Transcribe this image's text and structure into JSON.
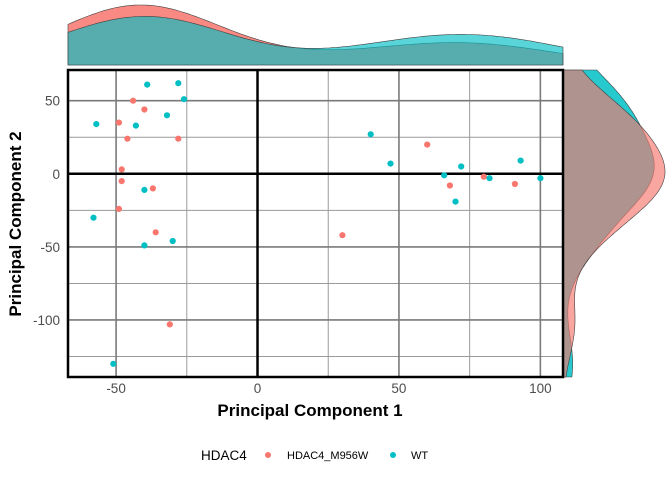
{
  "chart_data": {
    "type": "scatter",
    "xlabel": "Principal Component 1",
    "ylabel": "Principal Component 2",
    "xlim": [
      -67,
      108
    ],
    "ylim": [
      -139,
      71
    ],
    "x_ticks": [
      -50,
      0,
      50,
      100
    ],
    "y_ticks": [
      50,
      0,
      -50,
      -100
    ],
    "x_tick_labels": [
      "-50",
      "0",
      "50",
      "100"
    ],
    "y_tick_labels": [
      "50",
      "0",
      "-50",
      "-100"
    ],
    "grid": true,
    "marginal_density": {
      "top": true,
      "right": true
    },
    "legend": {
      "title": "HDAC4",
      "position": "bottom",
      "entries": [
        {
          "label": "HDAC4_M956W",
          "color": "#F8766D"
        },
        {
          "label": "WT",
          "color": "#00BFC4"
        }
      ]
    },
    "series": [
      {
        "name": "HDAC4_M956W",
        "color": "#F8766D",
        "points": [
          [
            -44,
            50
          ],
          [
            -40,
            44
          ],
          [
            -49,
            35
          ],
          [
            -28,
            24
          ],
          [
            -46,
            24
          ],
          [
            -48,
            3
          ],
          [
            -48,
            -5
          ],
          [
            -37,
            -10
          ],
          [
            -49,
            -24
          ],
          [
            -36,
            -40
          ],
          [
            -31,
            -103
          ],
          [
            30,
            -42
          ],
          [
            60,
            20
          ],
          [
            68,
            -8
          ],
          [
            80,
            -2
          ],
          [
            91,
            -7
          ]
        ]
      },
      {
        "name": "WT",
        "color": "#00BFC4",
        "points": [
          [
            -39,
            61
          ],
          [
            -28,
            62
          ],
          [
            -26,
            51
          ],
          [
            -32,
            40
          ],
          [
            -57,
            34
          ],
          [
            -43,
            33
          ],
          [
            -40,
            -11
          ],
          [
            -58,
            -30
          ],
          [
            -40,
            -49
          ],
          [
            -30,
            -46
          ],
          [
            -51,
            -130
          ],
          [
            40,
            27
          ],
          [
            47,
            7
          ],
          [
            72,
            5
          ],
          [
            66,
            -1
          ],
          [
            70,
            -19
          ],
          [
            82,
            -3
          ],
          [
            93,
            9
          ],
          [
            100,
            -3
          ]
        ]
      }
    ]
  }
}
